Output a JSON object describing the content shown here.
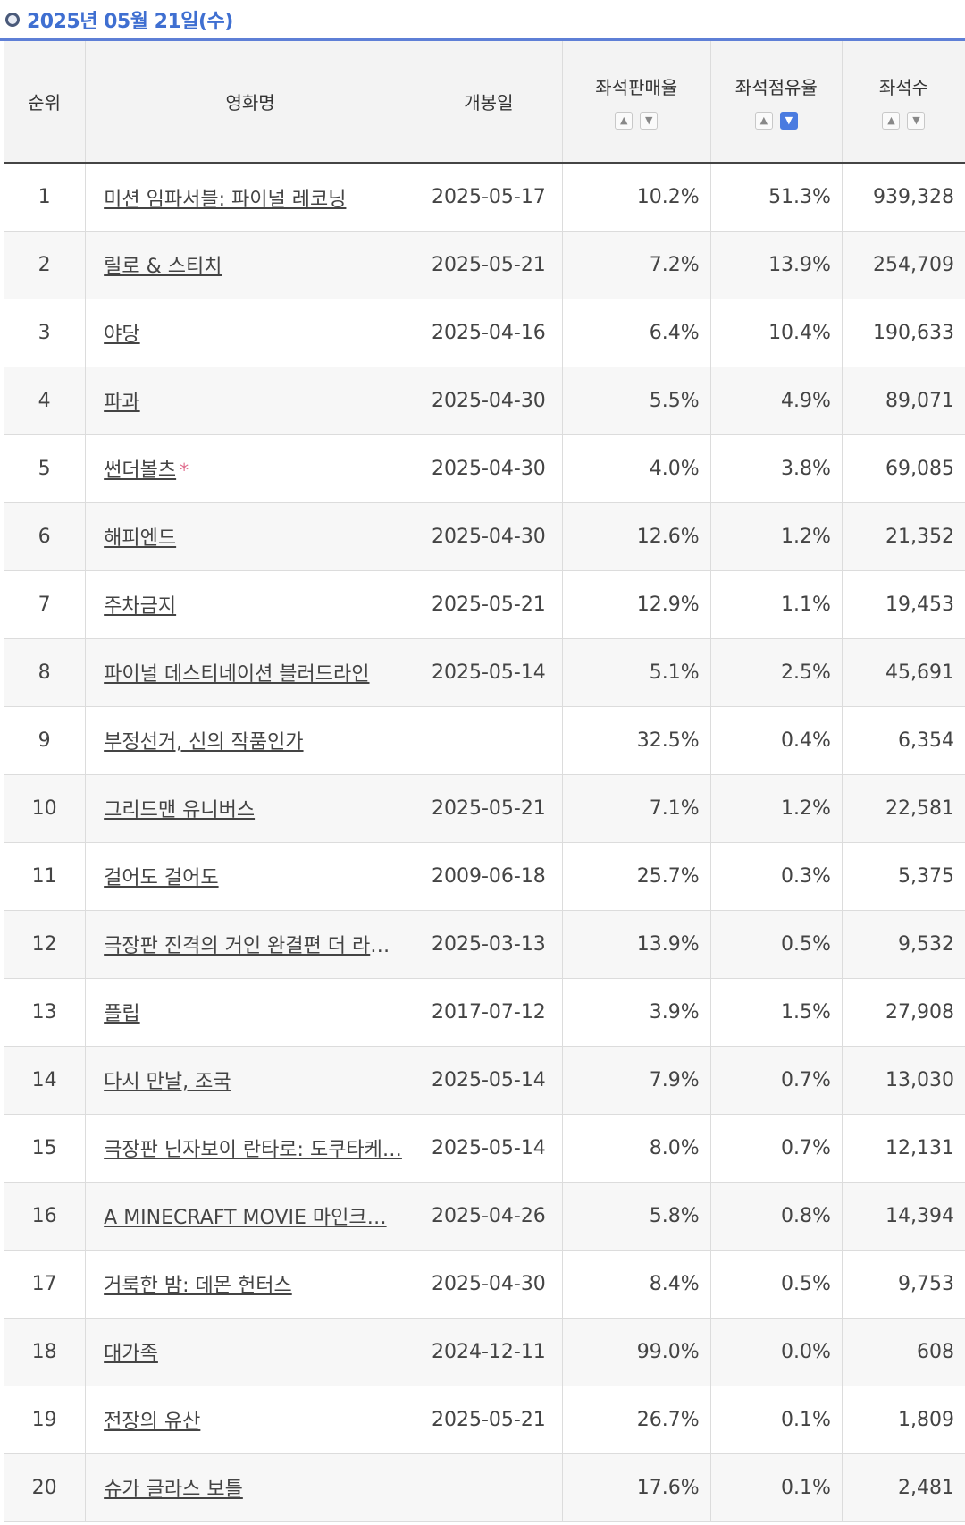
{
  "header": {
    "date": "2025년 05월 21일(수)"
  },
  "columns": {
    "rank": "순위",
    "title": "영화명",
    "release": "개봉일",
    "sales_rate": "좌석판매율",
    "share_rate": "좌석점유율",
    "seats": "좌석수"
  },
  "icons": {
    "sort_up": "▲",
    "sort_down": "▼"
  },
  "colors": {
    "accent": "#3f6fd1",
    "active_sort": "#4a7be0",
    "star": "#e06a8c"
  },
  "rows": [
    {
      "rank": "1",
      "title": "미션 임파서블: 파이널 레코닝",
      "release": "2025-05-17",
      "sales": "10.2%",
      "share": "51.3%",
      "seats": "939,328"
    },
    {
      "rank": "2",
      "title": "릴로 & 스티치",
      "release": "2025-05-21",
      "sales": "7.2%",
      "share": "13.9%",
      "seats": "254,709"
    },
    {
      "rank": "3",
      "title": "야당",
      "release": "2025-04-16",
      "sales": "6.4%",
      "share": "10.4%",
      "seats": "190,633"
    },
    {
      "rank": "4",
      "title": "파과",
      "release": "2025-04-30",
      "sales": "5.5%",
      "share": "4.9%",
      "seats": "89,071"
    },
    {
      "rank": "5",
      "title": "썬더볼츠",
      "mark": "*",
      "release": "2025-04-30",
      "sales": "4.0%",
      "share": "3.8%",
      "seats": "69,085"
    },
    {
      "rank": "6",
      "title": "해피엔드",
      "release": "2025-04-30",
      "sales": "12.6%",
      "share": "1.2%",
      "seats": "21,352"
    },
    {
      "rank": "7",
      "title": "주차금지",
      "release": "2025-05-21",
      "sales": "12.9%",
      "share": "1.1%",
      "seats": "19,453"
    },
    {
      "rank": "8",
      "title": "파이널 데스티네이션 블러드라인",
      "release": "2025-05-14",
      "sales": "5.1%",
      "share": "2.5%",
      "seats": "45,691"
    },
    {
      "rank": "9",
      "title": "부정선거, 신의 작품인가",
      "release": "",
      "sales": "32.5%",
      "share": "0.4%",
      "seats": "6,354"
    },
    {
      "rank": "10",
      "title": "그리드맨 유니버스",
      "release": "2025-05-21",
      "sales": "7.1%",
      "share": "1.2%",
      "seats": "22,581"
    },
    {
      "rank": "11",
      "title": "걸어도 걸어도",
      "release": "2009-06-18",
      "sales": "25.7%",
      "share": "0.3%",
      "seats": "5,375"
    },
    {
      "rank": "12",
      "title": "극장판 진격의 거인 완결편 더 라스…",
      "release": "2025-03-13",
      "sales": "13.9%",
      "share": "0.5%",
      "seats": "9,532"
    },
    {
      "rank": "13",
      "title": "플립",
      "release": "2017-07-12",
      "sales": "3.9%",
      "share": "1.5%",
      "seats": "27,908"
    },
    {
      "rank": "14",
      "title": "다시 만날, 조국",
      "release": "2025-05-14",
      "sales": "7.9%",
      "share": "0.7%",
      "seats": "13,030"
    },
    {
      "rank": "15",
      "title": "극장판 닌자보이 란타로: 도쿠타케…",
      "release": "2025-05-14",
      "sales": "8.0%",
      "share": "0.7%",
      "seats": "12,131"
    },
    {
      "rank": "16",
      "title": "A MINECRAFT MOVIE 마인크…",
      "release": "2025-04-26",
      "sales": "5.8%",
      "share": "0.8%",
      "seats": "14,394"
    },
    {
      "rank": "17",
      "title": "거룩한 밤: 데몬 헌터스",
      "release": "2025-04-30",
      "sales": "8.4%",
      "share": "0.5%",
      "seats": "9,753"
    },
    {
      "rank": "18",
      "title": "대가족",
      "release": "2024-12-11",
      "sales": "99.0%",
      "share": "0.0%",
      "seats": "608"
    },
    {
      "rank": "19",
      "title": "전장의 유산",
      "release": "2025-05-21",
      "sales": "26.7%",
      "share": "0.1%",
      "seats": "1,809"
    },
    {
      "rank": "20",
      "title": "슈가 글라스 보틀",
      "release": "",
      "sales": "17.6%",
      "share": "0.1%",
      "seats": "2,481"
    }
  ]
}
